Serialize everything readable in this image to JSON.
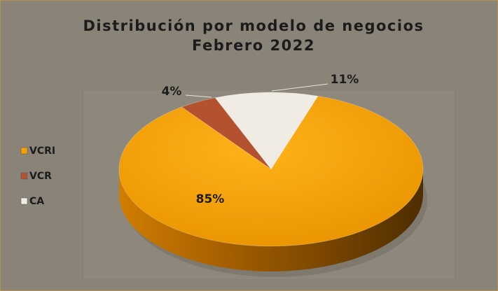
{
  "chart_data": {
    "type": "pie",
    "title": "Distribución por modelo de negocios",
    "subtitle": "Febrero 2022",
    "categories": [
      "VCRI",
      "VCR",
      "CA"
    ],
    "values": [
      85,
      4,
      11
    ],
    "value_labels": [
      "85%",
      "4%",
      "11%"
    ],
    "colors": [
      "#f5a104",
      "#b4512e",
      "#f1ece3"
    ],
    "legend": "left"
  }
}
